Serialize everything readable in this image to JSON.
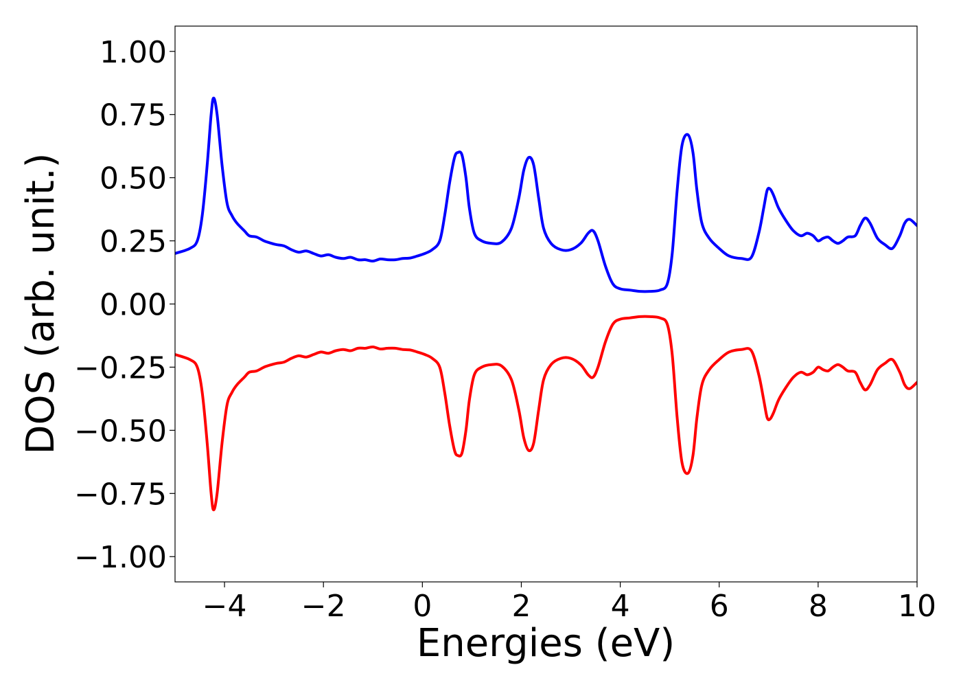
{
  "chart_data": {
    "type": "line",
    "title": "",
    "xlabel": "Energies (eV)",
    "ylabel": "DOS (arb. unit.)",
    "xlim": [
      -5,
      10
    ],
    "ylim": [
      -1.1,
      1.1
    ],
    "x_ticks": [
      -4,
      -2,
      0,
      2,
      4,
      6,
      8,
      10
    ],
    "x_tick_labels": [
      "−4",
      "−2",
      "0",
      "2",
      "4",
      "6",
      "8",
      "10"
    ],
    "y_ticks": [
      1.0,
      0.75,
      0.5,
      0.25,
      0.0,
      -0.25,
      -0.5,
      -0.75,
      -1.0
    ],
    "y_tick_labels": [
      "1.00",
      "0.75",
      "0.50",
      "0.25",
      "0.00",
      "−0.25",
      "−0.50",
      "−0.75",
      "−1.00"
    ],
    "grid": false,
    "legend": "none",
    "series": [
      {
        "color": "#0000ff",
        "x": [
          -5.0,
          -4.7,
          -4.55,
          -4.45,
          -4.35,
          -4.27,
          -4.22,
          -4.15,
          -4.05,
          -3.95,
          -3.85,
          -3.75,
          -3.6,
          -3.5,
          -3.35,
          -3.2,
          -3.05,
          -2.95,
          -2.8,
          -2.65,
          -2.5,
          -2.35,
          -2.2,
          -2.05,
          -1.9,
          -1.75,
          -1.6,
          -1.45,
          -1.3,
          -1.15,
          -1.0,
          -0.85,
          -0.7,
          -0.55,
          -0.4,
          -0.25,
          -0.1,
          0.05,
          0.2,
          0.35,
          0.45,
          0.55,
          0.65,
          0.72,
          0.8,
          0.88,
          0.95,
          1.05,
          1.2,
          1.4,
          1.6,
          1.8,
          1.95,
          2.05,
          2.15,
          2.25,
          2.35,
          2.45,
          2.6,
          2.8,
          3.0,
          3.2,
          3.35,
          3.45,
          3.55,
          3.7,
          3.85,
          4.0,
          4.2,
          4.4,
          4.6,
          4.8,
          4.95,
          5.05,
          5.15,
          5.25,
          5.37,
          5.47,
          5.55,
          5.65,
          5.8,
          6.0,
          6.2,
          6.45,
          6.65,
          6.8,
          6.9,
          6.97,
          7.03,
          7.1,
          7.2,
          7.35,
          7.5,
          7.65,
          7.78,
          7.9,
          8.0,
          8.1,
          8.2,
          8.3,
          8.4,
          8.5,
          8.6,
          8.75,
          8.85,
          8.95,
          9.05,
          9.2,
          9.35,
          9.5,
          9.65,
          9.75,
          9.85,
          10.0
        ],
        "y": [
          0.2,
          0.22,
          0.25,
          0.35,
          0.55,
          0.75,
          0.815,
          0.75,
          0.55,
          0.4,
          0.35,
          0.32,
          0.29,
          0.27,
          0.265,
          0.25,
          0.24,
          0.235,
          0.23,
          0.215,
          0.205,
          0.21,
          0.2,
          0.19,
          0.195,
          0.185,
          0.18,
          0.185,
          0.175,
          0.175,
          0.17,
          0.178,
          0.175,
          0.175,
          0.18,
          0.182,
          0.19,
          0.2,
          0.215,
          0.25,
          0.35,
          0.48,
          0.58,
          0.6,
          0.59,
          0.5,
          0.38,
          0.28,
          0.25,
          0.24,
          0.245,
          0.3,
          0.42,
          0.53,
          0.58,
          0.55,
          0.42,
          0.3,
          0.24,
          0.215,
          0.215,
          0.24,
          0.28,
          0.29,
          0.25,
          0.15,
          0.08,
          0.06,
          0.055,
          0.05,
          0.05,
          0.055,
          0.08,
          0.2,
          0.45,
          0.63,
          0.67,
          0.6,
          0.45,
          0.32,
          0.26,
          0.22,
          0.19,
          0.18,
          0.185,
          0.28,
          0.38,
          0.45,
          0.455,
          0.43,
          0.38,
          0.33,
          0.29,
          0.27,
          0.28,
          0.27,
          0.25,
          0.26,
          0.265,
          0.25,
          0.24,
          0.25,
          0.265,
          0.27,
          0.31,
          0.34,
          0.32,
          0.26,
          0.235,
          0.22,
          0.27,
          0.32,
          0.335,
          0.31
        ]
      },
      {
        "color": "#ff0000",
        "x": [
          -5.0,
          -4.7,
          -4.55,
          -4.45,
          -4.35,
          -4.27,
          -4.22,
          -4.15,
          -4.05,
          -3.95,
          -3.85,
          -3.75,
          -3.6,
          -3.5,
          -3.35,
          -3.2,
          -3.05,
          -2.95,
          -2.8,
          -2.65,
          -2.5,
          -2.35,
          -2.2,
          -2.05,
          -1.9,
          -1.75,
          -1.6,
          -1.45,
          -1.3,
          -1.15,
          -1.0,
          -0.85,
          -0.7,
          -0.55,
          -0.4,
          -0.25,
          -0.1,
          0.05,
          0.2,
          0.35,
          0.45,
          0.55,
          0.65,
          0.72,
          0.8,
          0.88,
          0.95,
          1.05,
          1.2,
          1.4,
          1.6,
          1.8,
          1.95,
          2.05,
          2.15,
          2.25,
          2.35,
          2.45,
          2.6,
          2.8,
          3.0,
          3.2,
          3.35,
          3.45,
          3.55,
          3.7,
          3.85,
          4.0,
          4.2,
          4.4,
          4.6,
          4.8,
          4.95,
          5.05,
          5.15,
          5.25,
          5.37,
          5.47,
          5.55,
          5.65,
          5.8,
          6.0,
          6.2,
          6.45,
          6.65,
          6.8,
          6.9,
          6.97,
          7.03,
          7.1,
          7.2,
          7.35,
          7.5,
          7.65,
          7.78,
          7.9,
          8.0,
          8.1,
          8.2,
          8.3,
          8.4,
          8.5,
          8.6,
          8.75,
          8.85,
          8.95,
          9.05,
          9.2,
          9.35,
          9.5,
          9.65,
          9.75,
          9.85,
          10.0
        ],
        "y": [
          -0.2,
          -0.22,
          -0.25,
          -0.35,
          -0.55,
          -0.75,
          -0.815,
          -0.75,
          -0.55,
          -0.4,
          -0.35,
          -0.32,
          -0.29,
          -0.27,
          -0.265,
          -0.25,
          -0.24,
          -0.235,
          -0.23,
          -0.215,
          -0.205,
          -0.21,
          -0.2,
          -0.19,
          -0.195,
          -0.185,
          -0.18,
          -0.185,
          -0.175,
          -0.175,
          -0.17,
          -0.178,
          -0.175,
          -0.175,
          -0.18,
          -0.182,
          -0.19,
          -0.2,
          -0.215,
          -0.25,
          -0.35,
          -0.48,
          -0.58,
          -0.6,
          -0.59,
          -0.5,
          -0.38,
          -0.28,
          -0.25,
          -0.24,
          -0.245,
          -0.3,
          -0.42,
          -0.53,
          -0.58,
          -0.55,
          -0.42,
          -0.3,
          -0.24,
          -0.215,
          -0.215,
          -0.24,
          -0.28,
          -0.29,
          -0.25,
          -0.15,
          -0.08,
          -0.06,
          -0.055,
          -0.05,
          -0.05,
          -0.055,
          -0.08,
          -0.2,
          -0.45,
          -0.63,
          -0.67,
          -0.6,
          -0.45,
          -0.32,
          -0.26,
          -0.22,
          -0.19,
          -0.18,
          -0.185,
          -0.28,
          -0.38,
          -0.45,
          -0.455,
          -0.43,
          -0.38,
          -0.33,
          -0.29,
          -0.27,
          -0.28,
          -0.27,
          -0.25,
          -0.26,
          -0.265,
          -0.25,
          -0.24,
          -0.25,
          -0.265,
          -0.27,
          -0.31,
          -0.34,
          -0.32,
          -0.26,
          -0.235,
          -0.22,
          -0.27,
          -0.32,
          -0.335,
          -0.31
        ]
      }
    ]
  }
}
